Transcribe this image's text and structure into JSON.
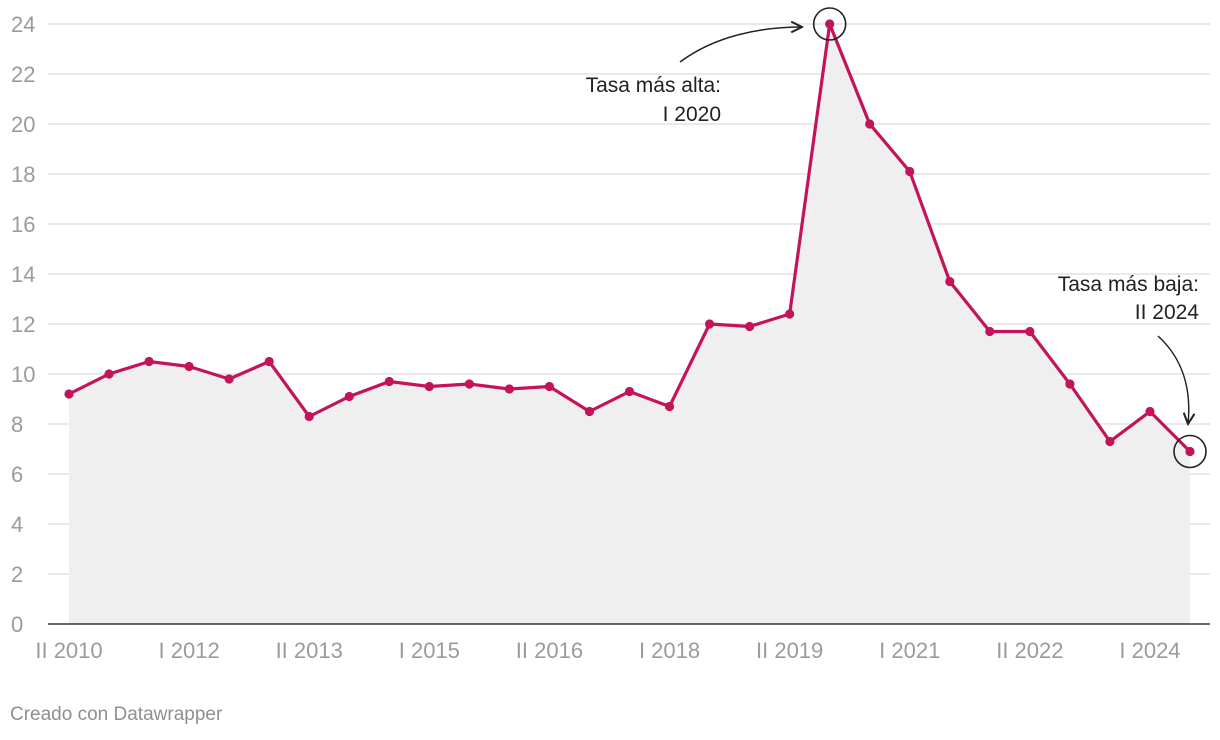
{
  "chart_data": {
    "type": "area",
    "title": "",
    "xlabel": "",
    "ylabel": "",
    "ylim": [
      0,
      24
    ],
    "yticks": [
      0,
      2,
      4,
      6,
      8,
      10,
      12,
      14,
      16,
      18,
      20,
      22,
      24
    ],
    "grid": true,
    "x": [
      "II 2010",
      "I 2011",
      "II 2011",
      "I 2012",
      "II 2012",
      "I 2013",
      "II 2013",
      "I 2014",
      "II 2014",
      "I 2015",
      "II 2015",
      "I 2016",
      "II 2016",
      "I 2017",
      "II 2017",
      "I 2018",
      "II 2018",
      "I 2019",
      "II 2019",
      "I 2020",
      "II 2020",
      "I 2021",
      "II 2021",
      "I 2022",
      "II 2022",
      "I 2023",
      "II 2023",
      "I 2024",
      "II 2024"
    ],
    "xtick_labels": [
      "II 2010",
      "I 2012",
      "II 2013",
      "I 2015",
      "II 2016",
      "I 2018",
      "II 2019",
      "I 2021",
      "II 2022",
      "I 2024"
    ],
    "series": [
      {
        "values": [
          9.2,
          10.0,
          10.5,
          10.3,
          9.8,
          10.5,
          8.3,
          9.1,
          9.7,
          9.5,
          9.6,
          9.4,
          9.5,
          8.5,
          9.3,
          8.7,
          12.0,
          11.9,
          12.4,
          24.0,
          20.0,
          18.1,
          13.7,
          11.7,
          11.7,
          9.6,
          7.3,
          8.5,
          6.9
        ]
      }
    ],
    "annotations": [
      {
        "point": "I 2020",
        "lines": [
          "Tasa más alta:",
          "I 2020"
        ]
      },
      {
        "point": "II 2024",
        "lines": [
          "Tasa más baja:",
          "II 2024"
        ]
      }
    ],
    "colors": {
      "line": "#c2135b",
      "area": "#efefef",
      "grid": "#e2e2e2",
      "axis": "#333333",
      "tick_text": "#9b9b9b"
    }
  },
  "footer": {
    "credit": "Creado con Datawrapper"
  }
}
